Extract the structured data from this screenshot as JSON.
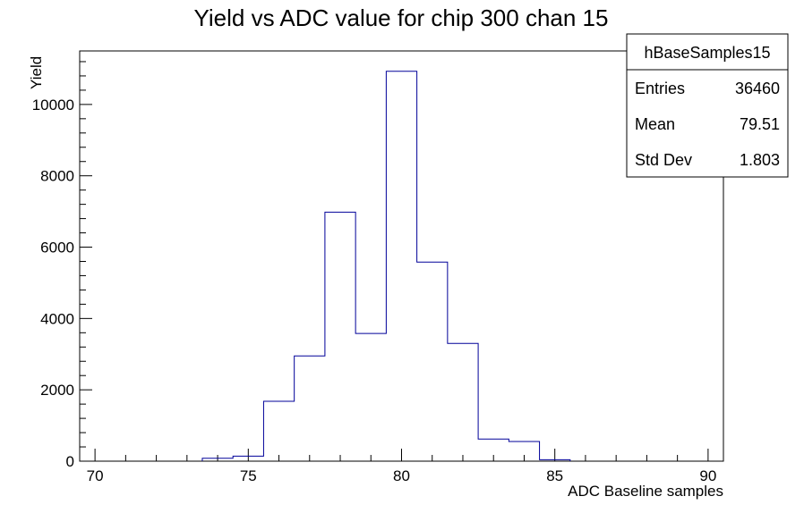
{
  "chart_data": {
    "type": "bar",
    "title": "Yield vs ADC value for chip 300 chan 15",
    "xlabel": "ADC Baseline samples",
    "ylabel": "Yield",
    "xlim": [
      69.5,
      90.5
    ],
    "ylim": [
      0,
      11500
    ],
    "x_ticks": [
      70,
      75,
      80,
      85,
      90
    ],
    "y_ticks": [
      0,
      2000,
      4000,
      6000,
      8000,
      10000
    ],
    "bin_edges": [
      73.5,
      74.5,
      75.5,
      76.5,
      77.5,
      78.5,
      79.5,
      80.5,
      81.5,
      82.5,
      83.5,
      84.5,
      85.5
    ],
    "values": [
      80,
      140,
      1680,
      2950,
      6980,
      3580,
      10930,
      5580,
      3300,
      620,
      550,
      40
    ],
    "line_color": "#000099",
    "grid": false
  },
  "stats_box": {
    "name": "hBaseSamples15",
    "rows": [
      {
        "label": "Entries",
        "value": "36460"
      },
      {
        "label": "Mean",
        "value": "79.51"
      },
      {
        "label": "Std Dev",
        "value": "1.803"
      }
    ]
  }
}
